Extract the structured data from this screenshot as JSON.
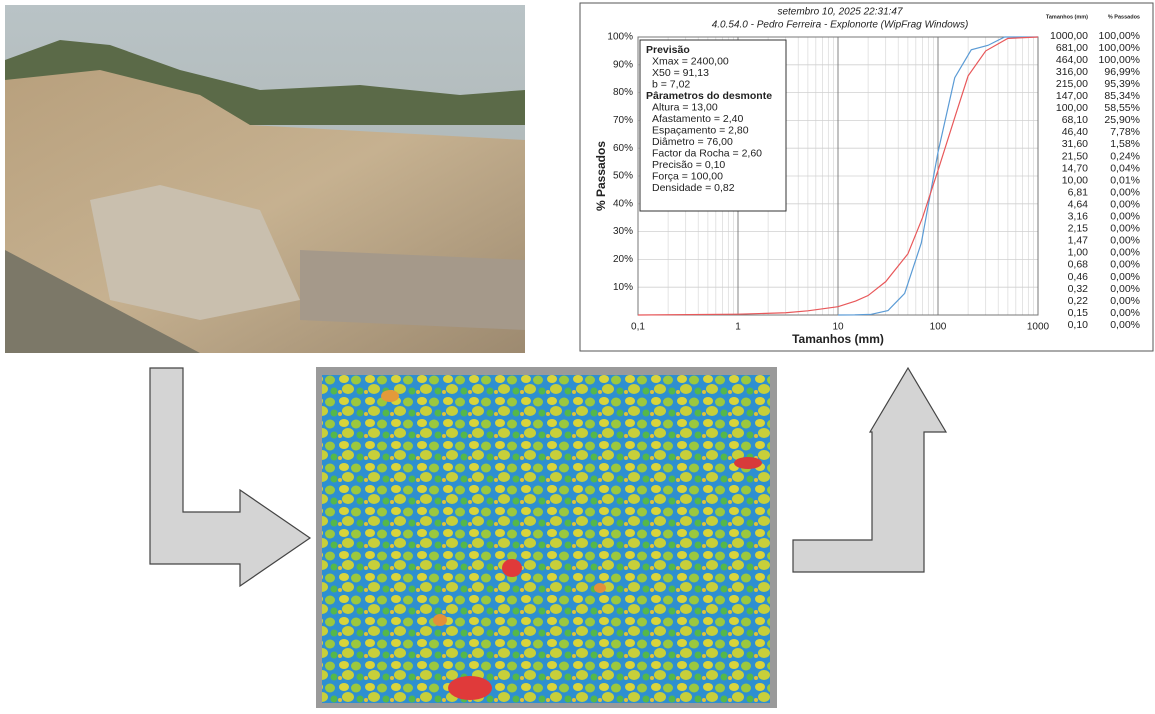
{
  "chart_data": {
    "type": "line",
    "title": "setembro 10, 2025 22:31:47",
    "subtitle": "4.0.54.0  -  Pedro Ferreira - Explonorte (WipFrag Windows)",
    "x_label": "Tamanhos (mm)",
    "y_label": "% Passados",
    "x_scale": "log",
    "grid": true,
    "xlim": [
      0.1,
      1000
    ],
    "xticks": [
      {
        "value": 0.1,
        "label": "0,1"
      },
      1,
      10,
      100,
      1000
    ],
    "ylim": [
      0,
      100
    ],
    "yticks": [
      {
        "value": 10,
        "label": "10%"
      },
      {
        "value": 20,
        "label": "20%"
      },
      {
        "value": 30,
        "label": "30%"
      },
      {
        "value": 40,
        "label": "40%"
      },
      {
        "value": 50,
        "label": "50%"
      },
      {
        "value": 60,
        "label": "60%"
      },
      {
        "value": 70,
        "label": "70%"
      },
      {
        "value": 80,
        "label": "80%"
      },
      {
        "value": 90,
        "label": "90%"
      },
      {
        "value": 100,
        "label": "100%"
      }
    ],
    "series": [
      {
        "color": "#5b9bd5",
        "x": [
          10,
          14.7,
          21.5,
          31.6,
          46.4,
          68.1,
          100,
          147,
          215,
          316,
          464,
          681,
          1000
        ],
        "values": [
          0.01,
          0.04,
          0.24,
          1.58,
          7.78,
          25.9,
          58.55,
          85.34,
          95.39,
          96.99,
          100,
          100,
          100
        ]
      },
      {
        "color": "#e8585a",
        "x": [
          0.1,
          1,
          3,
          5,
          10,
          15,
          20,
          30,
          50,
          70,
          100,
          150,
          200,
          300,
          500,
          1000
        ],
        "values": [
          0,
          0.3,
          0.8,
          1.5,
          3,
          5,
          7,
          12,
          22,
          35,
          52,
          72,
          86,
          95,
          99.5,
          100
        ]
      }
    ],
    "annotation": [
      {
        "heading": "Previsão",
        "lines": [
          "Xmax = 2400,00",
          "X50 = 91,13",
          "b = 7,02"
        ]
      },
      {
        "heading": "Pârametros do desmonte",
        "lines": [
          "Altura = 13,00",
          "Afastamento = 2,40",
          "Espaçamento = 2,80",
          "Diâmetro = 76,00",
          "Factor da Rocha = 2,60",
          "Precisão = 0,10",
          "Força = 100,00",
          "Densidade = 0,82"
        ]
      }
    ],
    "table": {
      "headers": [
        "Tamanhos (mm)",
        "% Passados"
      ],
      "rows": [
        [
          "1000,00",
          "100,00%"
        ],
        [
          "681,00",
          "100,00%"
        ],
        [
          "464,00",
          "100,00%"
        ],
        [
          "316,00",
          "96,99%"
        ],
        [
          "215,00",
          "95,39%"
        ],
        [
          "147,00",
          "85,34%"
        ],
        [
          "100,00",
          "58,55%"
        ],
        [
          "68,10",
          "25,90%"
        ],
        [
          "46,40",
          "7,78%"
        ],
        [
          "31,60",
          "1,58%"
        ],
        [
          "21,50",
          "0,24%"
        ],
        [
          "14,70",
          "0,04%"
        ],
        [
          "10,00",
          "0,01%"
        ],
        [
          "6,81",
          "0,00%"
        ],
        [
          "4,64",
          "0,00%"
        ],
        [
          "3,16",
          "0,00%"
        ],
        [
          "2,15",
          "0,00%"
        ],
        [
          "1,47",
          "0,00%"
        ],
        [
          "1,00",
          "0,00%"
        ],
        [
          "0,68",
          "0,00%"
        ],
        [
          "0,46",
          "0,00%"
        ],
        [
          "0,32",
          "0,00%"
        ],
        [
          "0,22",
          "0,00%"
        ],
        [
          "0,15",
          "0,00%"
        ],
        [
          "0,10",
          "0,00%"
        ]
      ]
    }
  }
}
